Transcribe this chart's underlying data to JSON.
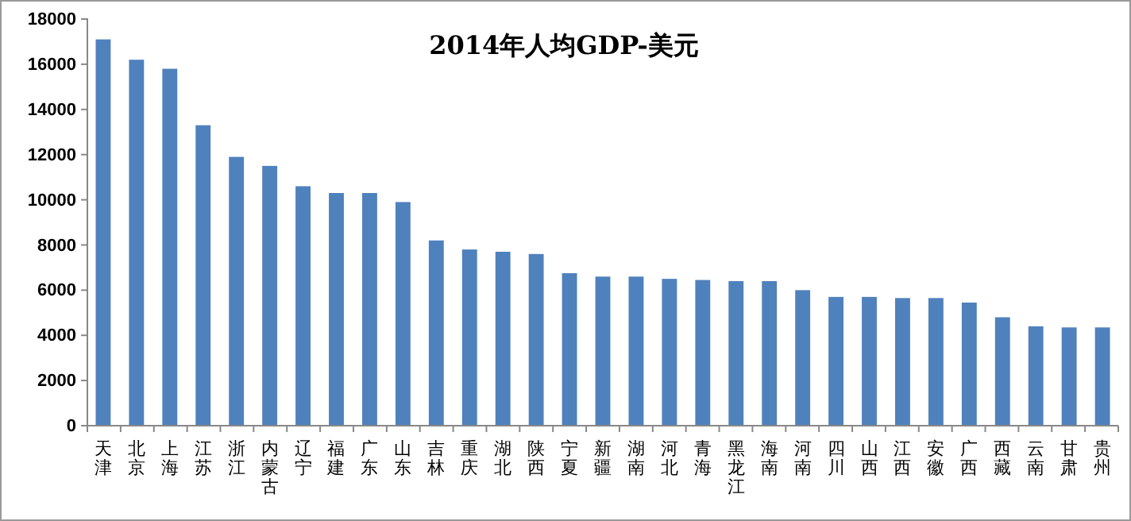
{
  "chart_data": {
    "type": "bar",
    "title": "2014年人均GDP-美元",
    "categories": [
      "天津",
      "北京",
      "上海",
      "江苏",
      "浙江",
      "内蒙古",
      "辽宁",
      "福建",
      "广东",
      "山东",
      "吉林",
      "重庆",
      "湖北",
      "陕西",
      "宁夏",
      "新疆",
      "湖南",
      "河北",
      "青海",
      "黑龙江",
      "海南",
      "河南",
      "四川",
      "山西",
      "江西",
      "安徽",
      "广西",
      "西藏",
      "云南",
      "甘肃",
      "贵州"
    ],
    "values": [
      17100,
      16200,
      15800,
      13300,
      11900,
      11500,
      10600,
      10300,
      10300,
      9900,
      8200,
      7800,
      7700,
      7600,
      6750,
      6600,
      6600,
      6500,
      6450,
      6400,
      6400,
      6000,
      5700,
      5700,
      5650,
      5650,
      5450,
      4800,
      4400,
      4350,
      4350
    ],
    "color": "#4f81bd",
    "ylim": [
      0,
      18000
    ],
    "yticks": [
      0,
      2000,
      4000,
      6000,
      8000,
      10000,
      12000,
      14000,
      16000,
      18000
    ],
    "grid": false
  }
}
